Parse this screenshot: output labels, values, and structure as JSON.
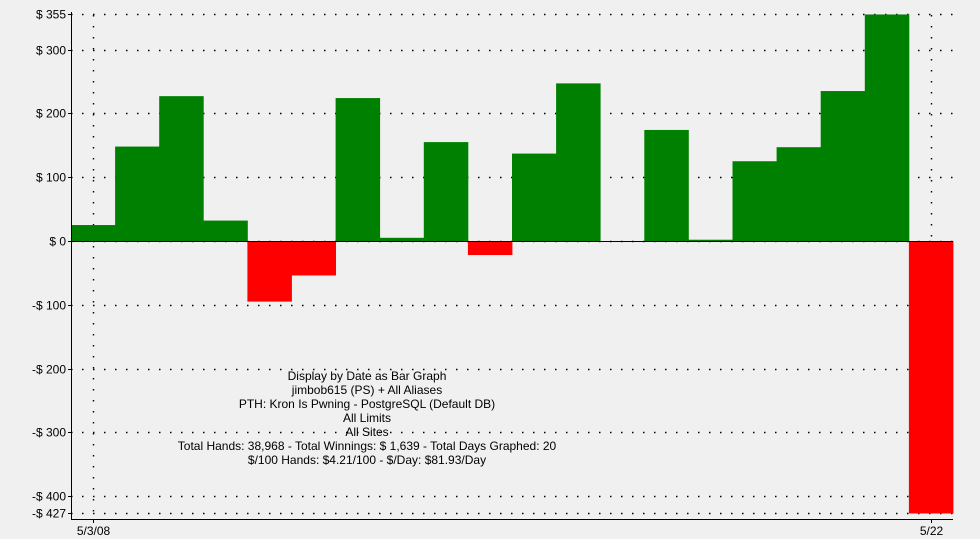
{
  "chart_data": {
    "type": "bar",
    "title": "",
    "xlabel": "",
    "ylabel": "",
    "ylim": [
      -427,
      355
    ],
    "y_ticks": [
      355,
      300,
      200,
      100,
      0,
      -100,
      -200,
      -300,
      -400,
      -427
    ],
    "y_tick_labels": [
      "$ 355",
      "$ 300",
      "$ 200",
      "$ 100",
      "$ 0",
      "-$ 100",
      "-$ 200",
      "-$ 300",
      "-$ 400",
      "-$ 427"
    ],
    "x_tick_labels": [
      "5/3/08",
      "5/22"
    ],
    "grid": true,
    "positive_color": "#008000",
    "negative_color": "#ff0000",
    "zero_line_color": "#000080",
    "values": [
      25,
      148,
      227,
      32,
      -95,
      -54,
      224,
      5,
      155,
      -22,
      137,
      247,
      0,
      174,
      2,
      125,
      147,
      235,
      355,
      -427
    ],
    "info_lines": [
      "Display by Date as Bar Graph",
      "jimbob615 (PS) + All Aliases",
      "PTH: Kron Is Pwning - PostgreSQL (Default DB)",
      "All Limits",
      "All Sites",
      "Total Hands: 38,968 - Total Winnings: $ 1,639 - Total Days Graphed: 20",
      "$/100 Hands: $4.21/100 - $/Day: $81.93/Day"
    ]
  }
}
